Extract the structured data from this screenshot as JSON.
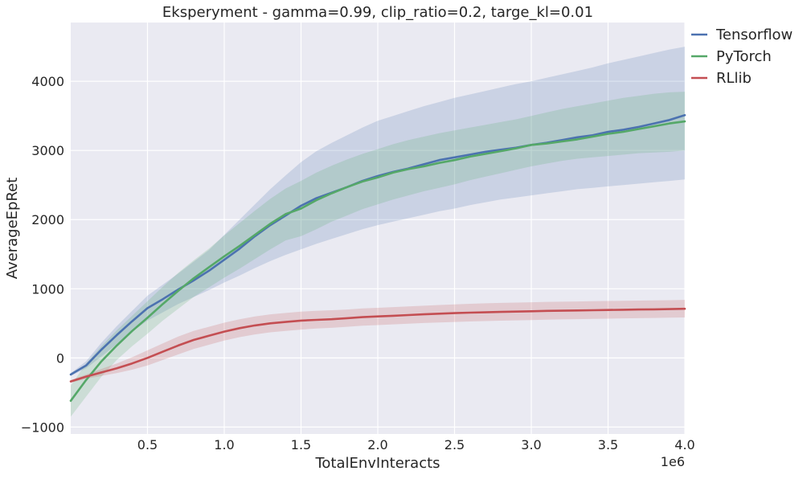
{
  "chart_data": {
    "type": "line",
    "title": "Eksperyment - gamma=0.99, clip_ratio=0.2, targe_kl=0.01",
    "xlabel": "TotalEnvInteracts",
    "ylabel": "AverageEpRet",
    "x_scale_label": "1e6",
    "xlim": [
      0,
      4000000
    ],
    "ylim": [
      -1100,
      4850
    ],
    "grid": true,
    "legend_placement": "outside top-right",
    "x_ticks": [
      500000,
      1000000,
      1500000,
      2000000,
      2500000,
      3000000,
      3500000,
      4000000
    ],
    "x_tick_labels": [
      "0.5",
      "1.0",
      "1.5",
      "2.0",
      "2.5",
      "3.0",
      "3.5",
      "4.0"
    ],
    "y_ticks": [
      -1000,
      0,
      1000,
      2000,
      3000,
      4000
    ],
    "y_tick_labels": [
      "−1000",
      "0",
      "1000",
      "2000",
      "3000",
      "4000"
    ],
    "x": [
      0,
      100000,
      200000,
      300000,
      400000,
      500000,
      600000,
      700000,
      800000,
      900000,
      1000000,
      1100000,
      1200000,
      1300000,
      1400000,
      1500000,
      1600000,
      1700000,
      1800000,
      1900000,
      2000000,
      2100000,
      2200000,
      2300000,
      2400000,
      2500000,
      2600000,
      2700000,
      2800000,
      2900000,
      3000000,
      3100000,
      3200000,
      3300000,
      3400000,
      3500000,
      3600000,
      3700000,
      3800000,
      3900000,
      4000000
    ],
    "series": [
      {
        "name": "Tensorflow",
        "color": "#4c72b0",
        "values": [
          -240,
          -110,
          120,
          330,
          530,
          720,
          850,
          990,
          1120,
          1260,
          1420,
          1580,
          1760,
          1920,
          2060,
          2200,
          2310,
          2390,
          2470,
          2560,
          2630,
          2690,
          2740,
          2800,
          2860,
          2900,
          2940,
          2980,
          3010,
          3040,
          3080,
          3110,
          3150,
          3190,
          3220,
          3270,
          3300,
          3340,
          3390,
          3440,
          3510
        ],
        "lower": [
          -260,
          -150,
          20,
          200,
          380,
          540,
          660,
          780,
          880,
          980,
          1090,
          1190,
          1300,
          1400,
          1490,
          1570,
          1650,
          1720,
          1790,
          1860,
          1920,
          1970,
          2020,
          2070,
          2120,
          2160,
          2210,
          2250,
          2290,
          2320,
          2350,
          2380,
          2410,
          2440,
          2460,
          2480,
          2500,
          2520,
          2540,
          2560,
          2580
        ],
        "upper": [
          -220,
          -50,
          220,
          460,
          680,
          900,
          1060,
          1220,
          1390,
          1560,
          1780,
          2000,
          2220,
          2440,
          2640,
          2830,
          2990,
          3110,
          3220,
          3330,
          3430,
          3500,
          3570,
          3640,
          3700,
          3760,
          3810,
          3860,
          3910,
          3960,
          4000,
          4050,
          4100,
          4150,
          4200,
          4260,
          4310,
          4360,
          4410,
          4460,
          4500
        ]
      },
      {
        "name": "PyTorch",
        "color": "#55a868",
        "values": [
          -620,
          -320,
          -50,
          180,
          390,
          580,
          780,
          970,
          1150,
          1310,
          1470,
          1620,
          1780,
          1940,
          2080,
          2160,
          2280,
          2380,
          2470,
          2550,
          2610,
          2680,
          2730,
          2770,
          2820,
          2860,
          2910,
          2950,
          2990,
          3030,
          3080,
          3100,
          3130,
          3160,
          3200,
          3240,
          3270,
          3310,
          3350,
          3390,
          3420
        ],
        "lower": [
          -850,
          -560,
          -270,
          -30,
          170,
          350,
          540,
          710,
          880,
          1020,
          1160,
          1290,
          1430,
          1570,
          1700,
          1760,
          1860,
          1970,
          2060,
          2150,
          2220,
          2290,
          2350,
          2410,
          2460,
          2510,
          2570,
          2620,
          2670,
          2720,
          2770,
          2810,
          2850,
          2880,
          2900,
          2920,
          2940,
          2960,
          2970,
          2980,
          3000
        ],
        "upper": [
          -400,
          -80,
          170,
          400,
          610,
          820,
          1030,
          1230,
          1410,
          1580,
          1770,
          1950,
          2130,
          2300,
          2450,
          2560,
          2680,
          2780,
          2870,
          2950,
          3020,
          3090,
          3150,
          3200,
          3250,
          3290,
          3330,
          3370,
          3410,
          3450,
          3500,
          3550,
          3600,
          3640,
          3680,
          3720,
          3760,
          3790,
          3820,
          3840,
          3850
        ]
      },
      {
        "name": "RLlib",
        "color": "#c44e52",
        "values": [
          -340,
          -270,
          -210,
          -150,
          -80,
          0,
          90,
          180,
          260,
          320,
          380,
          430,
          470,
          500,
          520,
          540,
          550,
          560,
          575,
          590,
          600,
          610,
          620,
          630,
          640,
          648,
          655,
          660,
          665,
          670,
          675,
          680,
          683,
          686,
          690,
          693,
          697,
          700,
          703,
          706,
          710
        ],
        "lower": [
          -360,
          -300,
          -260,
          -220,
          -170,
          -110,
          -30,
          50,
          130,
          190,
          250,
          300,
          340,
          370,
          390,
          410,
          425,
          435,
          450,
          465,
          475,
          485,
          495,
          505,
          512,
          520,
          527,
          533,
          538,
          543,
          548,
          553,
          557,
          561,
          565,
          568,
          572,
          575,
          578,
          581,
          585
        ],
        "upper": [
          -320,
          -240,
          -160,
          -80,
          10,
          110,
          210,
          310,
          390,
          450,
          510,
          560,
          600,
          630,
          650,
          670,
          680,
          690,
          700,
          715,
          725,
          735,
          745,
          755,
          765,
          775,
          783,
          790,
          795,
          800,
          805,
          810,
          813,
          816,
          820,
          823,
          826,
          829,
          832,
          835,
          840
        ]
      }
    ]
  }
}
